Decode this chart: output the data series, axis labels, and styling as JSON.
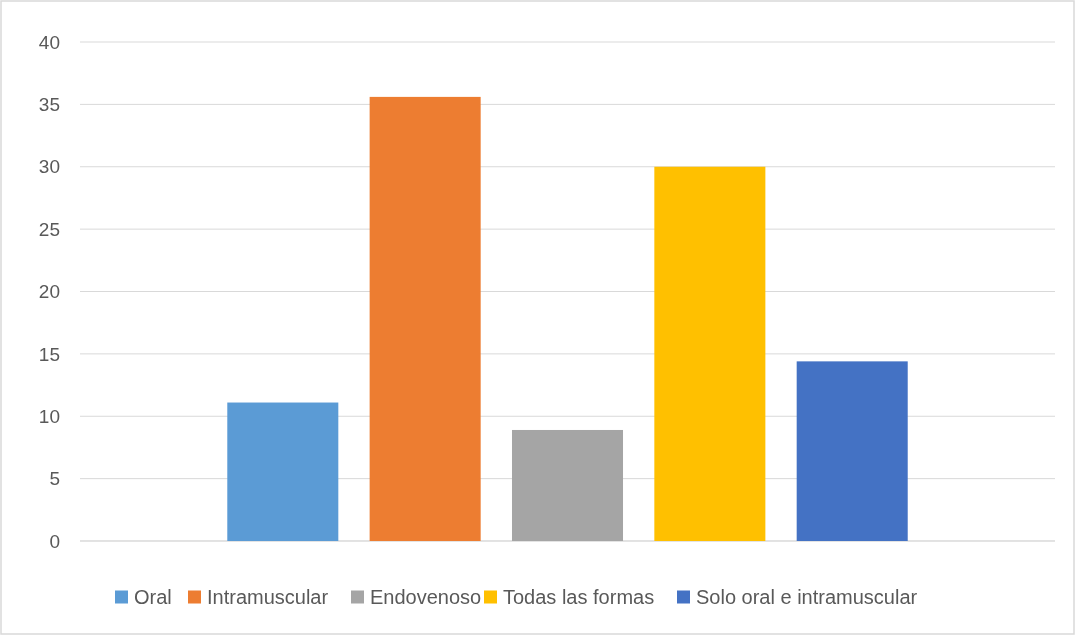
{
  "chart_data": {
    "type": "bar",
    "categories": [
      null
    ],
    "series": [
      {
        "name": "Oral",
        "color": "#5b9bd5",
        "values": [
          11.1
        ]
      },
      {
        "name": "Intramuscular",
        "color": "#ed7d31",
        "values": [
          35.6
        ]
      },
      {
        "name": "Endovenoso",
        "color": "#a5a5a5",
        "values": [
          8.9
        ]
      },
      {
        "name": "Todas las formas",
        "color": "#ffc000",
        "values": [
          30
        ]
      },
      {
        "name": "Solo oral e intramuscular",
        "color": "#4472c4",
        "values": [
          14.4
        ]
      }
    ],
    "ylim": [
      0,
      40
    ],
    "yticks": [
      0,
      5,
      10,
      15,
      20,
      25,
      30,
      35,
      40
    ],
    "grid": "y",
    "legend": "bottom"
  }
}
